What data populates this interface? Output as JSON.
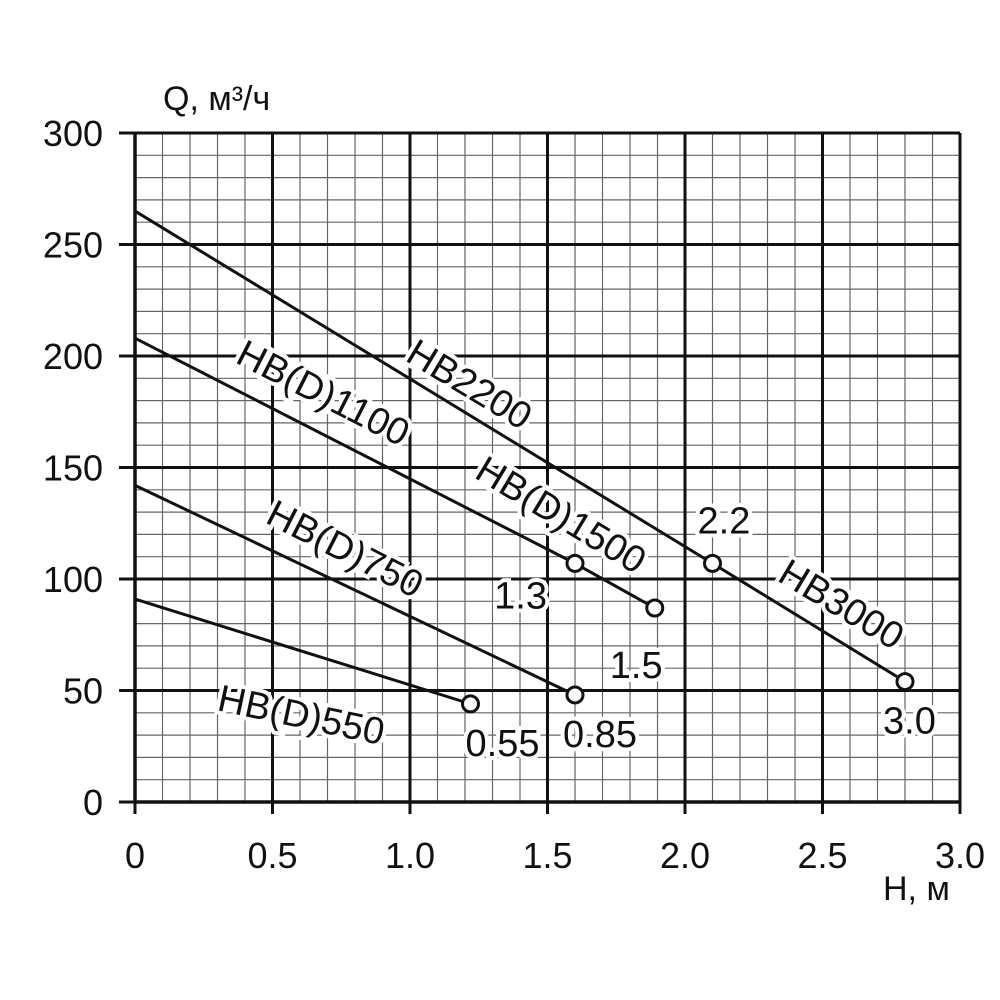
{
  "chart_data": {
    "type": "line",
    "xlabel": "H, м",
    "ylabel": "Q, м³/ч",
    "xlim": [
      0,
      3.0
    ],
    "ylim": [
      0,
      300
    ],
    "xticks": [
      "0",
      "0.5",
      "1.0",
      "1.5",
      "2.0",
      "2.5",
      "3.0"
    ],
    "yticks": [
      "0",
      "50",
      "100",
      "150",
      "200",
      "250",
      "300"
    ],
    "grid": true,
    "minor_grid_step_x": 0.1,
    "minor_grid_step_y": 10,
    "series": [
      {
        "name": "HB(D)550",
        "points": [
          [
            0,
            91
          ],
          [
            1.22,
            44
          ]
        ],
        "end_label": "0.55"
      },
      {
        "name": "HB(D)750",
        "points": [
          [
            0,
            142
          ],
          [
            1.6,
            48
          ]
        ],
        "end_label": "0.85"
      },
      {
        "name": "HB(D)1100",
        "points": [
          [
            0,
            208
          ],
          [
            1.6,
            107
          ]
        ],
        "end_label": "1.3"
      },
      {
        "name": "HB(D)1500",
        "points": [
          [
            1.6,
            107
          ],
          [
            1.89,
            87
          ]
        ],
        "end_label": "1.5"
      },
      {
        "name": "HB2200",
        "points": [
          [
            0,
            265
          ],
          [
            2.1,
            107
          ]
        ],
        "end_label": "2.2"
      },
      {
        "name": "HB3000",
        "points": [
          [
            2.1,
            107
          ],
          [
            2.8,
            54
          ]
        ],
        "end_label": "3.0"
      }
    ]
  }
}
